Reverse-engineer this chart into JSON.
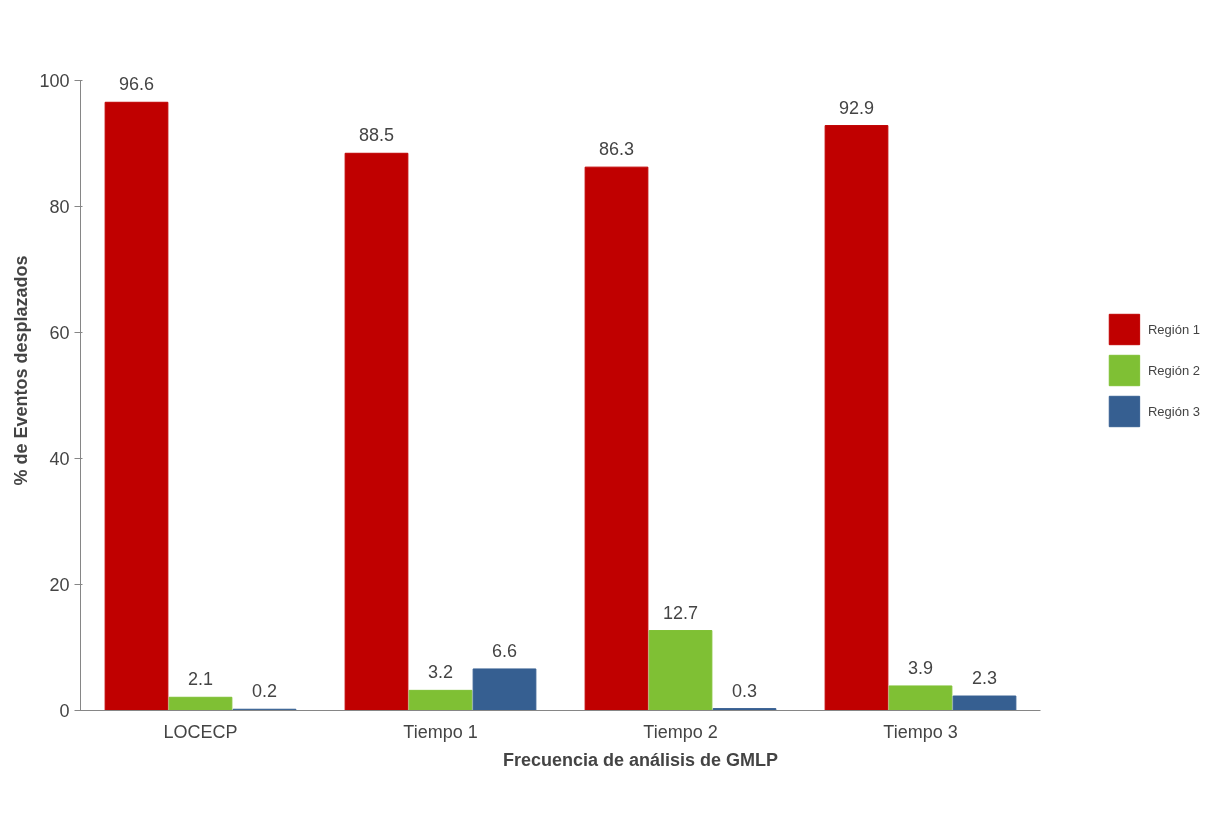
{
  "chart_data": {
    "type": "bar",
    "xlabel": "Frecuencia de análisis de GMLP",
    "ylabel": "% de Eventos desplazados",
    "categories": [
      "LOCECP",
      "Tiempo 1",
      "Tiempo 2",
      "Tiempo 3"
    ],
    "series": [
      {
        "name": "Región 1",
        "color": "#c00000",
        "values": [
          96.6,
          88.5,
          86.3,
          92.9
        ]
      },
      {
        "name": "Región 2",
        "color": "#7fc034",
        "values": [
          2.1,
          3.2,
          12.7,
          3.9
        ]
      },
      {
        "name": "Región 3",
        "color": "#365f91",
        "values": [
          0.2,
          6.6,
          0.3,
          2.3
        ]
      }
    ],
    "ylim": [
      0,
      100
    ],
    "yticks": [
      0,
      20,
      40,
      60,
      80,
      100
    ],
    "data_labels": true,
    "legend": "right",
    "grid": false
  }
}
